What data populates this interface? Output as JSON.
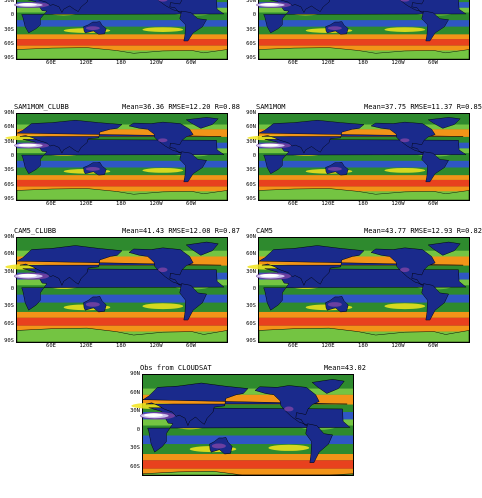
{
  "colors": {
    "white": "#ffffff",
    "lavender": "#cfc4ee",
    "purple": "#6b3fa0",
    "navy": "#1a2a8c",
    "blue": "#2f56c4",
    "green": "#2e8a2e",
    "lightgreen": "#74c442",
    "yellow": "#f2e51c",
    "orange": "#f29418",
    "red": "#e8411e",
    "land_outline": "#000000"
  },
  "axes": {
    "lat_ticks": [
      "90N",
      "60N",
      "30N",
      "0",
      "30S",
      "60S",
      "90S"
    ],
    "lon_ticks": [
      "60E",
      "120E",
      "180",
      "120W",
      "60W"
    ]
  },
  "panels": [
    {
      "id": "top-left",
      "title": "",
      "stats": "",
      "lat_ticks": [
        "30N",
        "0",
        "30S",
        "60S",
        "90S"
      ],
      "show_lon": true
    },
    {
      "id": "top-right",
      "title": "",
      "stats": "",
      "lat_ticks": [
        "30N",
        "0",
        "30S",
        "60S",
        "90S"
      ],
      "show_lon": true
    },
    {
      "id": "sam1mom-clubb",
      "title": "SAM1MOM_CLUBB",
      "stats": "Mean=36.36 RMSE=12.20 R=0.88",
      "lat_ticks": [
        "90N",
        "60N",
        "30N",
        "0",
        "30S",
        "60S",
        "90S"
      ],
      "show_lon": true
    },
    {
      "id": "sam1mom",
      "title": "SAM1MOM",
      "stats": "Mean=37.75 RMSE=11.37 R=0.85",
      "lat_ticks": [
        "90N",
        "60N",
        "30N",
        "0",
        "30S",
        "60S",
        "90S"
      ],
      "show_lon": true
    },
    {
      "id": "cam5-clubb",
      "title": "CAM5_CLUBB",
      "stats": "Mean=41.43 RMSE=12.08 R=0.87",
      "lat_ticks": [
        "90N",
        "60N",
        "30N",
        "0",
        "30S",
        "60S",
        "90S"
      ],
      "show_lon": true
    },
    {
      "id": "cam5",
      "title": "CAM5",
      "stats": "Mean=43.77 RMSE=12.93 R=0.82",
      "lat_ticks": [
        "90N",
        "60N",
        "30N",
        "0",
        "30S",
        "60S",
        "90S"
      ],
      "show_lon": true
    },
    {
      "id": "obs-cloudsat",
      "title": "Obs from CLOUDSAT",
      "stats": "Mean=43.02",
      "lat_ticks": [
        "90N",
        "60N",
        "30N",
        "0",
        "30S",
        "60S"
      ],
      "show_lon": false
    }
  ]
}
